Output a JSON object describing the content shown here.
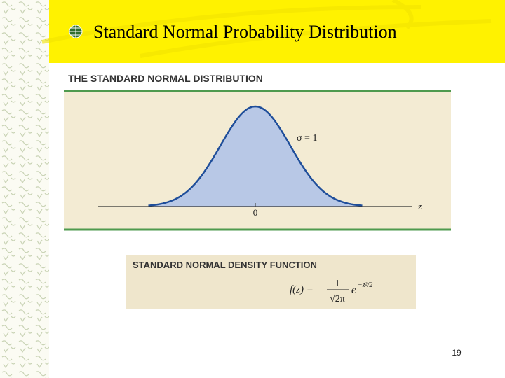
{
  "slide": {
    "title": "Standard Normal Probability Distribution",
    "page_number": "19"
  },
  "figure": {
    "heading": "THE STANDARD NORMAL DISTRIBUTION",
    "sigma_label": "σ = 1",
    "axis_label": "z",
    "center_label": "0"
  },
  "density_box": {
    "heading": "STANDARD NORMAL DENSITY FUNCTION",
    "lhs": "f(z) =",
    "numerator": "1",
    "denominator": "√2π",
    "base": "e",
    "exponent": "−z²/2"
  }
}
